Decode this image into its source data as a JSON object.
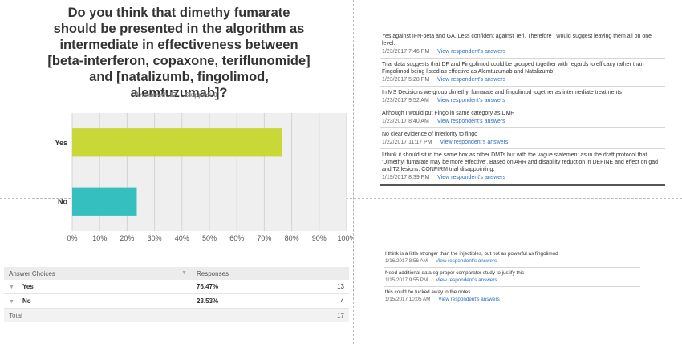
{
  "question": "Do you think that dimethy fumarate should be presented in the algorithm as intermediate in effectiveness between [beta-interferon, copaxone, teriflunomide] and [natalizumb, fingolimod, alemtuzumab]?",
  "answered_label": "Answered: 17",
  "skipped_label": "Skipped: 0",
  "chart_data": {
    "type": "bar",
    "orientation": "horizontal",
    "categories": [
      "Yes",
      "No"
    ],
    "values": [
      76.47,
      23.53
    ],
    "colors": [
      "#c9d837",
      "#35bfbf"
    ],
    "xlim": [
      0,
      100
    ],
    "xticks": [
      "0%",
      "10%",
      "20%",
      "30%",
      "40%",
      "50%",
      "60%",
      "70%",
      "80%",
      "90%",
      "100%"
    ],
    "grid": true
  },
  "table": {
    "headers": [
      "Answer Choices",
      "Responses"
    ],
    "rows": [
      {
        "choice": "Yes",
        "percent": "76.47%",
        "count": "13"
      },
      {
        "choice": "No",
        "percent": "23.53%",
        "count": "4"
      }
    ],
    "total_label": "Total",
    "total_count": "17"
  },
  "link_label": "View respondent's answers",
  "comments_top": [
    {
      "text": "Yes against IFN-beta and GA. Less confident against Teri. Therefore I would suggest leaving them all on one level.",
      "date": "1/23/2017 7:46 PM"
    },
    {
      "text": "Trial data suggests that DF and Fingolimod could be grouped together with regards to efficacy rather than Fingolimod being listed as effective as Alemtuzumab and Natalizumb",
      "date": "1/23/2017 5:28 PM"
    },
    {
      "text": "In MS Decisions we group dimethyl fumarate and fingolimod together as intermediate treatments",
      "date": "1/23/2017 9:52 AM"
    },
    {
      "text": "Although I would put Fingo in same category as DMF",
      "date": "1/23/2017 8:40 AM"
    },
    {
      "text": "No clear evidence of inferiority to fingo",
      "date": "1/22/2017 11:17 PM"
    },
    {
      "text": "I think it should sit in the same box as other DMTs but with the vague statement as in the draft protocol that 'Dimethyl fumarate may be more effective'. Based on ARR and disability reduction in DEFINE and effect on gad and T2 lesions. CONFIRM trial disappointing.",
      "date": "1/19/2017 8:39 PM"
    }
  ],
  "comments_bottom": [
    {
      "text": "I think is a little stronger than the injectibles, but not as powerful as fingolimod",
      "date": "1/16/2017 8:56 AM"
    },
    {
      "text": "Need additional data eg proper comparator study to justify this",
      "date": "1/15/2017 9:55 PM"
    },
    {
      "text": "this could be tucked away in the notes",
      "date": "1/15/2017 10:05 AM"
    }
  ]
}
